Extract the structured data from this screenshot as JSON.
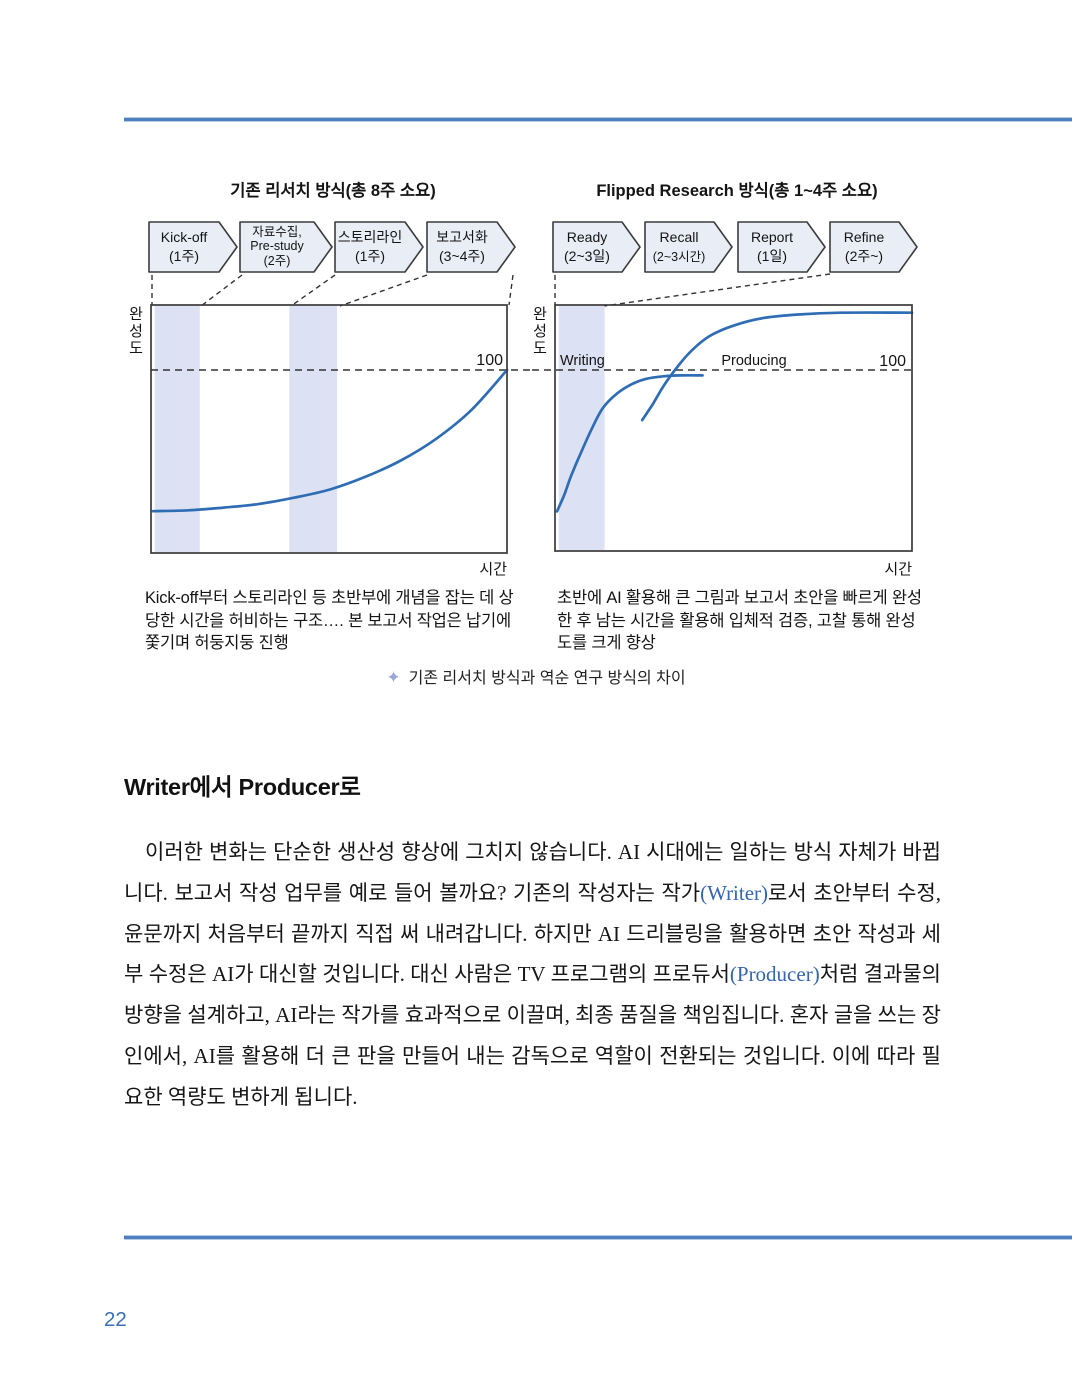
{
  "figure": {
    "left": {
      "title": "기존 리서치 방식(총 8주 소요)",
      "steps": [
        {
          "lines": [
            "Kick-off",
            "(1주)"
          ]
        },
        {
          "lines": [
            "자료수집,",
            "Pre-study",
            "(2주)"
          ]
        },
        {
          "lines": [
            "스토리라인",
            "(1주)"
          ]
        },
        {
          "lines": [
            "보고서화",
            "(3~4주)"
          ]
        }
      ],
      "y_axis_chars": [
        "완",
        "성",
        "도"
      ],
      "x_axis": "시간",
      "ref_label": "100",
      "note": "Kick-off부터 스토리라인 등 초반부에 개념을 잡는 데 상당한 시간을 허비하는 구조…. 본 보고서 작업은 납기에 쫓기며 허둥지둥 진행"
    },
    "right": {
      "title": "Flipped Research 방식(총 1~4주 소요)",
      "steps": [
        {
          "lines": [
            "Ready",
            "(2~3일)"
          ]
        },
        {
          "lines": [
            "Recall",
            "(2~3시간)"
          ]
        },
        {
          "lines": [
            "Report",
            "(1일)"
          ]
        },
        {
          "lines": [
            "Refine",
            "(2주~)"
          ]
        }
      ],
      "labels": {
        "writing": "Writing",
        "producing": "Producing"
      },
      "y_axis_chars": [
        "완",
        "성",
        "도"
      ],
      "x_axis": "시간",
      "ref_label": "100",
      "note": "초반에 AI 활용해 큰 그림과 보고서 초안을 빠르게 완성한 후 남는 시간을 활용해 입체적 검증, 고찰 통해 완성도를 크게 향상"
    },
    "caption": "기존 리서치 방식과 역순 연구 방식의 차이",
    "caption_icon": "✦"
  },
  "section": {
    "heading": "Writer에서 Producer로",
    "paragraph": {
      "segments": [
        {
          "style": "normal",
          "text": "이러한 변화는 단순한 생산성 향상에 그치지 않습니다. AI 시대에는 일하는 방식 자체가 바뀝니다. 보고서 작성 업무를 예로 들어 볼까요? 기존의 작성자는 작가"
        },
        {
          "style": "blue",
          "text": "(Writer)"
        },
        {
          "style": "normal",
          "text": "로서 초안부터 수정, 윤문까지 처음부터 끝까지 직접 써 내려갑니다. 하지만 AI 드리블링을 활용하면 초안 작성과 세부 수정은 AI가 대신할 것입니다. 대신 사람은 TV 프로그램의 프로듀서"
        },
        {
          "style": "blue",
          "text": "(Producer)"
        },
        {
          "style": "normal",
          "text": "처럼 결과물의 방향을 설계하고, AI라는 작가를 효과적으로 이끌며, 최종 품질을 책임집니다. 혼자 글을 쓰는 장인에서, AI를 활용해 더 큰 판을 만들어 내는 감독으로 역할이 전환되는 것입니다. 이에 따라 필요한 역량도 변하게 됩니다."
        }
      ]
    }
  },
  "page_number": "22",
  "colors": {
    "accent_blue": "#2e6db4",
    "rule_blue": "#4d80be",
    "band": "#dce1f3",
    "link_blue": "#3465ae",
    "page_number_blue": "#3a6fb0",
    "star": "#9aa6d6"
  },
  "chart_data": [
    {
      "type": "line",
      "title": "기존 리서치 방식(총 8주 소요)",
      "xlabel": "시간",
      "ylabel": "완성도",
      "ref_line_y": 100,
      "ylim": [
        0,
        135
      ],
      "grid": false,
      "bands_x_pct": [
        [
          0.5,
          13.2
        ],
        [
          38.5,
          52.0
        ]
      ],
      "series": [
        {
          "name": "완성도",
          "points_pct": [
            [
              0,
              22
            ],
            [
              10,
              22.5
            ],
            [
              20,
              24
            ],
            [
              30,
              26
            ],
            [
              40,
              29.5
            ],
            [
              50,
              34
            ],
            [
              60,
              41
            ],
            [
              70,
              50
            ],
            [
              80,
              62
            ],
            [
              90,
              78
            ],
            [
              100,
              100
            ]
          ]
        }
      ]
    },
    {
      "type": "line",
      "title": "Flipped Research 방식(총 1~4주 소요)",
      "xlabel": "시간",
      "ylabel": "완성도",
      "ref_line_y": 100,
      "ylim": [
        0,
        135
      ],
      "grid": false,
      "bands_x_pct": [
        [
          0.5,
          13.4
        ]
      ],
      "series": [
        {
          "name": "Writing",
          "points_pct": [
            [
              0,
              21
            ],
            [
              2,
              30
            ],
            [
              4,
              41
            ],
            [
              7,
              55
            ],
            [
              10,
              68
            ],
            [
              13,
              79
            ],
            [
              17,
              87
            ],
            [
              21,
              92
            ],
            [
              25,
              95
            ],
            [
              30,
              96.5
            ],
            [
              35,
              97
            ],
            [
              41,
              97
            ]
          ]
        },
        {
          "name": "Producing",
          "points_pct": [
            [
              24,
              72
            ],
            [
              27,
              81
            ],
            [
              30,
              91
            ],
            [
              34,
              102
            ],
            [
              38,
              111
            ],
            [
              43,
              119
            ],
            [
              50,
              125
            ],
            [
              58,
              129
            ],
            [
              68,
              131
            ],
            [
              80,
              132
            ],
            [
              100,
              132
            ]
          ]
        }
      ]
    }
  ]
}
